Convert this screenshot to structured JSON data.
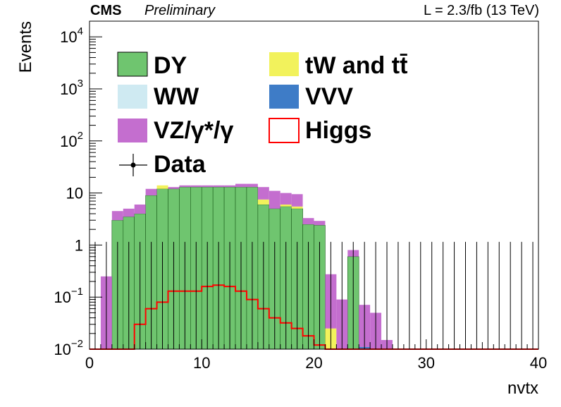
{
  "header": {
    "experiment": "CMS",
    "status": "Preliminary",
    "lumi": "L = 2.3/fb (13 TeV)"
  },
  "chart_data": {
    "type": "bar",
    "stacked": true,
    "yscale": "log",
    "xlabel": "nvtx",
    "ylabel": "Events",
    "xlim": [
      0,
      40
    ],
    "ylim": [
      0.01,
      20000
    ],
    "bin_width": 1,
    "x_ticks": [
      "0",
      "10",
      "20",
      "30",
      "40"
    ],
    "y_ticks": [
      {
        "value": 0.01,
        "base": "10",
        "exp": "−2"
      },
      {
        "value": 0.1,
        "base": "10",
        "exp": "−1"
      },
      {
        "value": 1,
        "base": "1",
        "exp": ""
      },
      {
        "value": 10,
        "base": "10",
        "exp": ""
      },
      {
        "value": 100,
        "base": "10",
        "exp": "2"
      },
      {
        "value": 1000,
        "base": "10",
        "exp": "3"
      },
      {
        "value": 10000,
        "base": "10",
        "exp": "4"
      }
    ],
    "legend_position": "top-left",
    "colors": {
      "DY": "#6fc56f",
      "WW": "#cfeaf2",
      "VZ": "#c46ecf",
      "tW": "#f2f25c",
      "VVV": "#3e7cc7",
      "Higgs": "#ff0000",
      "Data": "#000000"
    },
    "stack_order": [
      "DY",
      "WW",
      "tW",
      "VVV",
      "VZ"
    ],
    "series": [
      {
        "key": "DY",
        "name": "DY",
        "values": [
          0,
          0,
          3,
          3.5,
          4,
          9,
          12,
          12,
          13,
          13,
          13,
          13,
          13,
          13,
          13,
          6,
          5,
          5.5,
          5,
          2.5,
          2.4,
          0,
          0,
          0.6,
          0.01,
          0,
          0,
          0,
          0,
          0,
          0,
          0,
          0,
          0,
          0,
          0,
          0,
          0,
          0,
          0
        ]
      },
      {
        "key": "WW",
        "name": "WW",
        "values": [
          0,
          0,
          0,
          0,
          0,
          0,
          0,
          0,
          0,
          0,
          0,
          0,
          0,
          0,
          0,
          0,
          0,
          0,
          0,
          0,
          0,
          0,
          0,
          0,
          0,
          0,
          0,
          0,
          0,
          0,
          0,
          0,
          0,
          0,
          0,
          0,
          0,
          0,
          0,
          0
        ]
      },
      {
        "key": "tW",
        "name": "tW and tt̄",
        "values": [
          0,
          0,
          0,
          0,
          0,
          0,
          2,
          0,
          0,
          0,
          0,
          0,
          0,
          0,
          0,
          1.5,
          0,
          0.5,
          0.5,
          0,
          0.01,
          0.025,
          0,
          0,
          0,
          0,
          0,
          0,
          0,
          0,
          0,
          0,
          0,
          0,
          0,
          0,
          0,
          0,
          0,
          0
        ]
      },
      {
        "key": "VVV",
        "name": "VVV",
        "values": [
          0,
          0,
          0,
          0,
          0,
          0,
          0,
          0,
          0,
          0,
          0,
          0,
          0,
          0,
          0,
          0,
          0,
          0,
          0,
          0,
          0,
          0,
          0,
          0.002,
          0.001,
          0,
          0,
          0,
          0,
          0,
          0,
          0,
          0,
          0,
          0,
          0,
          0,
          0,
          0,
          0
        ]
      },
      {
        "key": "VZ",
        "name": "VZ/γ*/γ",
        "values": [
          0,
          0.25,
          1.5,
          1.5,
          2,
          3,
          0,
          1,
          1,
          1,
          1,
          1,
          1,
          2,
          2,
          5.5,
          6,
          4,
          4,
          0.8,
          0.5,
          0.25,
          0.09,
          0.2,
          0.06,
          0.05,
          0.015,
          0,
          0,
          0,
          0,
          0,
          0,
          0,
          0,
          0,
          0,
          0,
          0,
          0
        ]
      },
      {
        "key": "Higgs",
        "name": "Higgs",
        "style": "line",
        "values": [
          0,
          0,
          0,
          0.01,
          0.03,
          0.06,
          0.08,
          0.13,
          0.13,
          0.13,
          0.16,
          0.17,
          0.16,
          0.13,
          0.09,
          0.06,
          0.04,
          0.032,
          0.025,
          0.018,
          0.012,
          0.01,
          0,
          0,
          0,
          0,
          0,
          0,
          0,
          0,
          0,
          0,
          0,
          0,
          0,
          0,
          0,
          0,
          0,
          0
        ]
      },
      {
        "key": "Data",
        "name": "Data",
        "style": "points",
        "values": [
          0,
          0,
          0,
          0,
          0,
          0,
          0,
          0,
          0,
          0,
          0,
          0,
          0,
          0,
          0,
          0,
          0,
          0,
          0,
          0,
          0,
          0,
          0,
          0,
          0,
          0,
          0,
          0,
          0,
          0,
          0,
          0,
          0,
          0,
          0,
          0,
          0,
          0,
          0,
          0
        ],
        "error_up": 1.15
      }
    ]
  }
}
